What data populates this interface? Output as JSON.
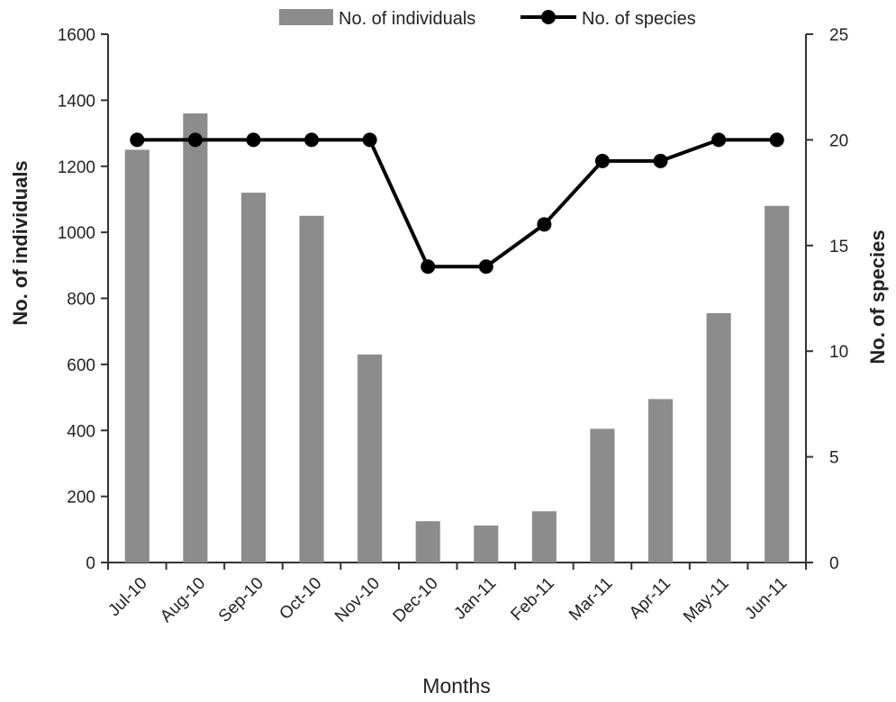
{
  "chart_data": {
    "type": "bar-line",
    "categories": [
      "Jul-10",
      "Aug-10",
      "Sep-10",
      "Oct-10",
      "Nov-10",
      "Dec-10",
      "Jan-11",
      "Feb-11",
      "Mar-11",
      "Apr-11",
      "May-11",
      "Jun-11"
    ],
    "series": [
      {
        "name": "No. of individuals",
        "type": "bar",
        "axis": "left",
        "color": "#8c8c8c",
        "values": [
          1250,
          1360,
          1120,
          1050,
          630,
          125,
          112,
          155,
          405,
          495,
          755,
          1080
        ]
      },
      {
        "name": "No. of species",
        "type": "line",
        "axis": "right",
        "color": "#000000",
        "values": [
          20,
          20,
          20,
          20,
          20,
          14,
          14,
          16,
          19,
          19,
          20,
          20
        ]
      }
    ],
    "xlabel": "Months",
    "ylabel_left": "No. of individuals",
    "ylabel_right": "No. of species",
    "ylim_left": [
      0,
      1600
    ],
    "ylim_right": [
      0,
      25
    ],
    "yticks_left": [
      0,
      200,
      400,
      600,
      800,
      1000,
      1200,
      1400,
      1600
    ],
    "yticks_right": [
      0,
      5,
      10,
      15,
      20,
      25
    ],
    "legend_position": "top-center",
    "grid": false
  }
}
